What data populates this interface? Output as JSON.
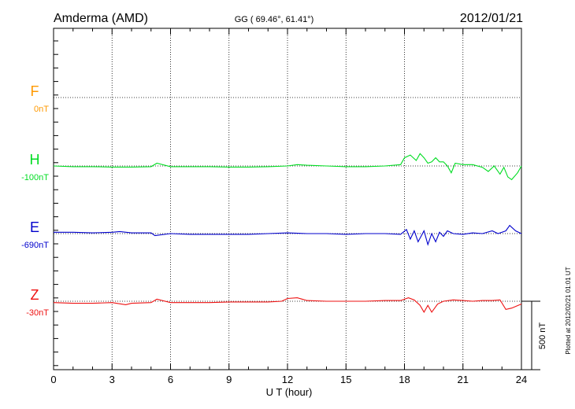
{
  "header": {
    "station": "Amderma (AMD)",
    "coords": "GG ( 69.46°,  61.41°)",
    "date": "2012/01/21"
  },
  "footer_note": "Plotted at 2012/02/21 01:01 UT",
  "scale_label": "500 nT",
  "chart_data": {
    "type": "line",
    "xlabel": "U T (hour)",
    "xlim": [
      0,
      24
    ],
    "xticks": [
      "0",
      "3",
      "6",
      "9",
      "12",
      "15",
      "18",
      "21",
      "24"
    ],
    "scale_bar_nT": 500,
    "grid": true,
    "series": [
      {
        "name": "F",
        "offset_label": "0nT",
        "color": "#ff9900",
        "x": [],
        "values": []
      },
      {
        "name": "H",
        "offset_label": "-100nT",
        "color": "#00dd22",
        "x": [
          0,
          1,
          2,
          3,
          4,
          5,
          5.3,
          6,
          7,
          8,
          9,
          10,
          11,
          12,
          12.5,
          13,
          14,
          15,
          16,
          17,
          17.8,
          18,
          18.3,
          18.6,
          18.8,
          19,
          19.2,
          19.4,
          19.6,
          19.8,
          20,
          20.2,
          20.4,
          20.6,
          21,
          21.5,
          22,
          22.3,
          22.6,
          22.9,
          23.1,
          23.3,
          23.5,
          23.8,
          24
        ],
        "values": [
          0,
          -5,
          -5,
          -8,
          -8,
          -5,
          20,
          -5,
          -5,
          -5,
          -8,
          -8,
          -5,
          0,
          10,
          5,
          0,
          -5,
          -5,
          0,
          10,
          60,
          80,
          40,
          90,
          60,
          20,
          30,
          60,
          30,
          30,
          0,
          -50,
          20,
          10,
          10,
          -10,
          -40,
          0,
          -60,
          -10,
          -80,
          -100,
          -50,
          0
        ]
      },
      {
        "name": "E",
        "offset_label": "-690nT",
        "color": "#0000cc",
        "x": [
          0,
          1,
          2,
          3,
          3.4,
          4,
          5,
          5.2,
          6,
          7,
          8,
          9,
          10,
          11,
          12,
          13,
          14,
          15,
          16,
          17,
          17.8,
          18.1,
          18.3,
          18.5,
          18.7,
          19,
          19.2,
          19.4,
          19.6,
          19.8,
          20,
          20.2,
          20.5,
          21,
          21.5,
          22,
          22.5,
          22.8,
          23.2,
          23.4,
          23.7,
          24
        ],
        "values": [
          10,
          10,
          5,
          10,
          15,
          5,
          5,
          -15,
          0,
          -5,
          -5,
          -5,
          -5,
          0,
          5,
          0,
          0,
          -5,
          0,
          0,
          -5,
          30,
          -40,
          20,
          -60,
          20,
          -80,
          0,
          -60,
          10,
          -20,
          20,
          0,
          -5,
          5,
          0,
          20,
          0,
          20,
          60,
          20,
          0
        ]
      },
      {
        "name": "Z",
        "offset_label": "-30nT",
        "color": "#ee1111",
        "x": [
          0,
          1,
          2,
          3,
          3.7,
          4,
          5,
          5.3,
          6,
          7,
          8,
          9,
          10,
          11,
          11.7,
          12,
          12.5,
          13,
          14,
          15,
          16,
          17,
          17.8,
          18.2,
          18.5,
          18.8,
          19,
          19.2,
          19.4,
          19.7,
          20,
          20.5,
          21,
          21.5,
          22,
          22.5,
          22.9,
          23.2,
          23.5,
          24
        ],
        "values": [
          -10,
          -15,
          -15,
          -10,
          -25,
          -15,
          -10,
          15,
          -10,
          -10,
          -10,
          -5,
          -5,
          -5,
          0,
          20,
          25,
          5,
          0,
          0,
          0,
          5,
          5,
          25,
          10,
          -30,
          -80,
          -30,
          -80,
          -20,
          0,
          10,
          5,
          0,
          5,
          5,
          10,
          -60,
          -50,
          -20
        ]
      }
    ]
  }
}
